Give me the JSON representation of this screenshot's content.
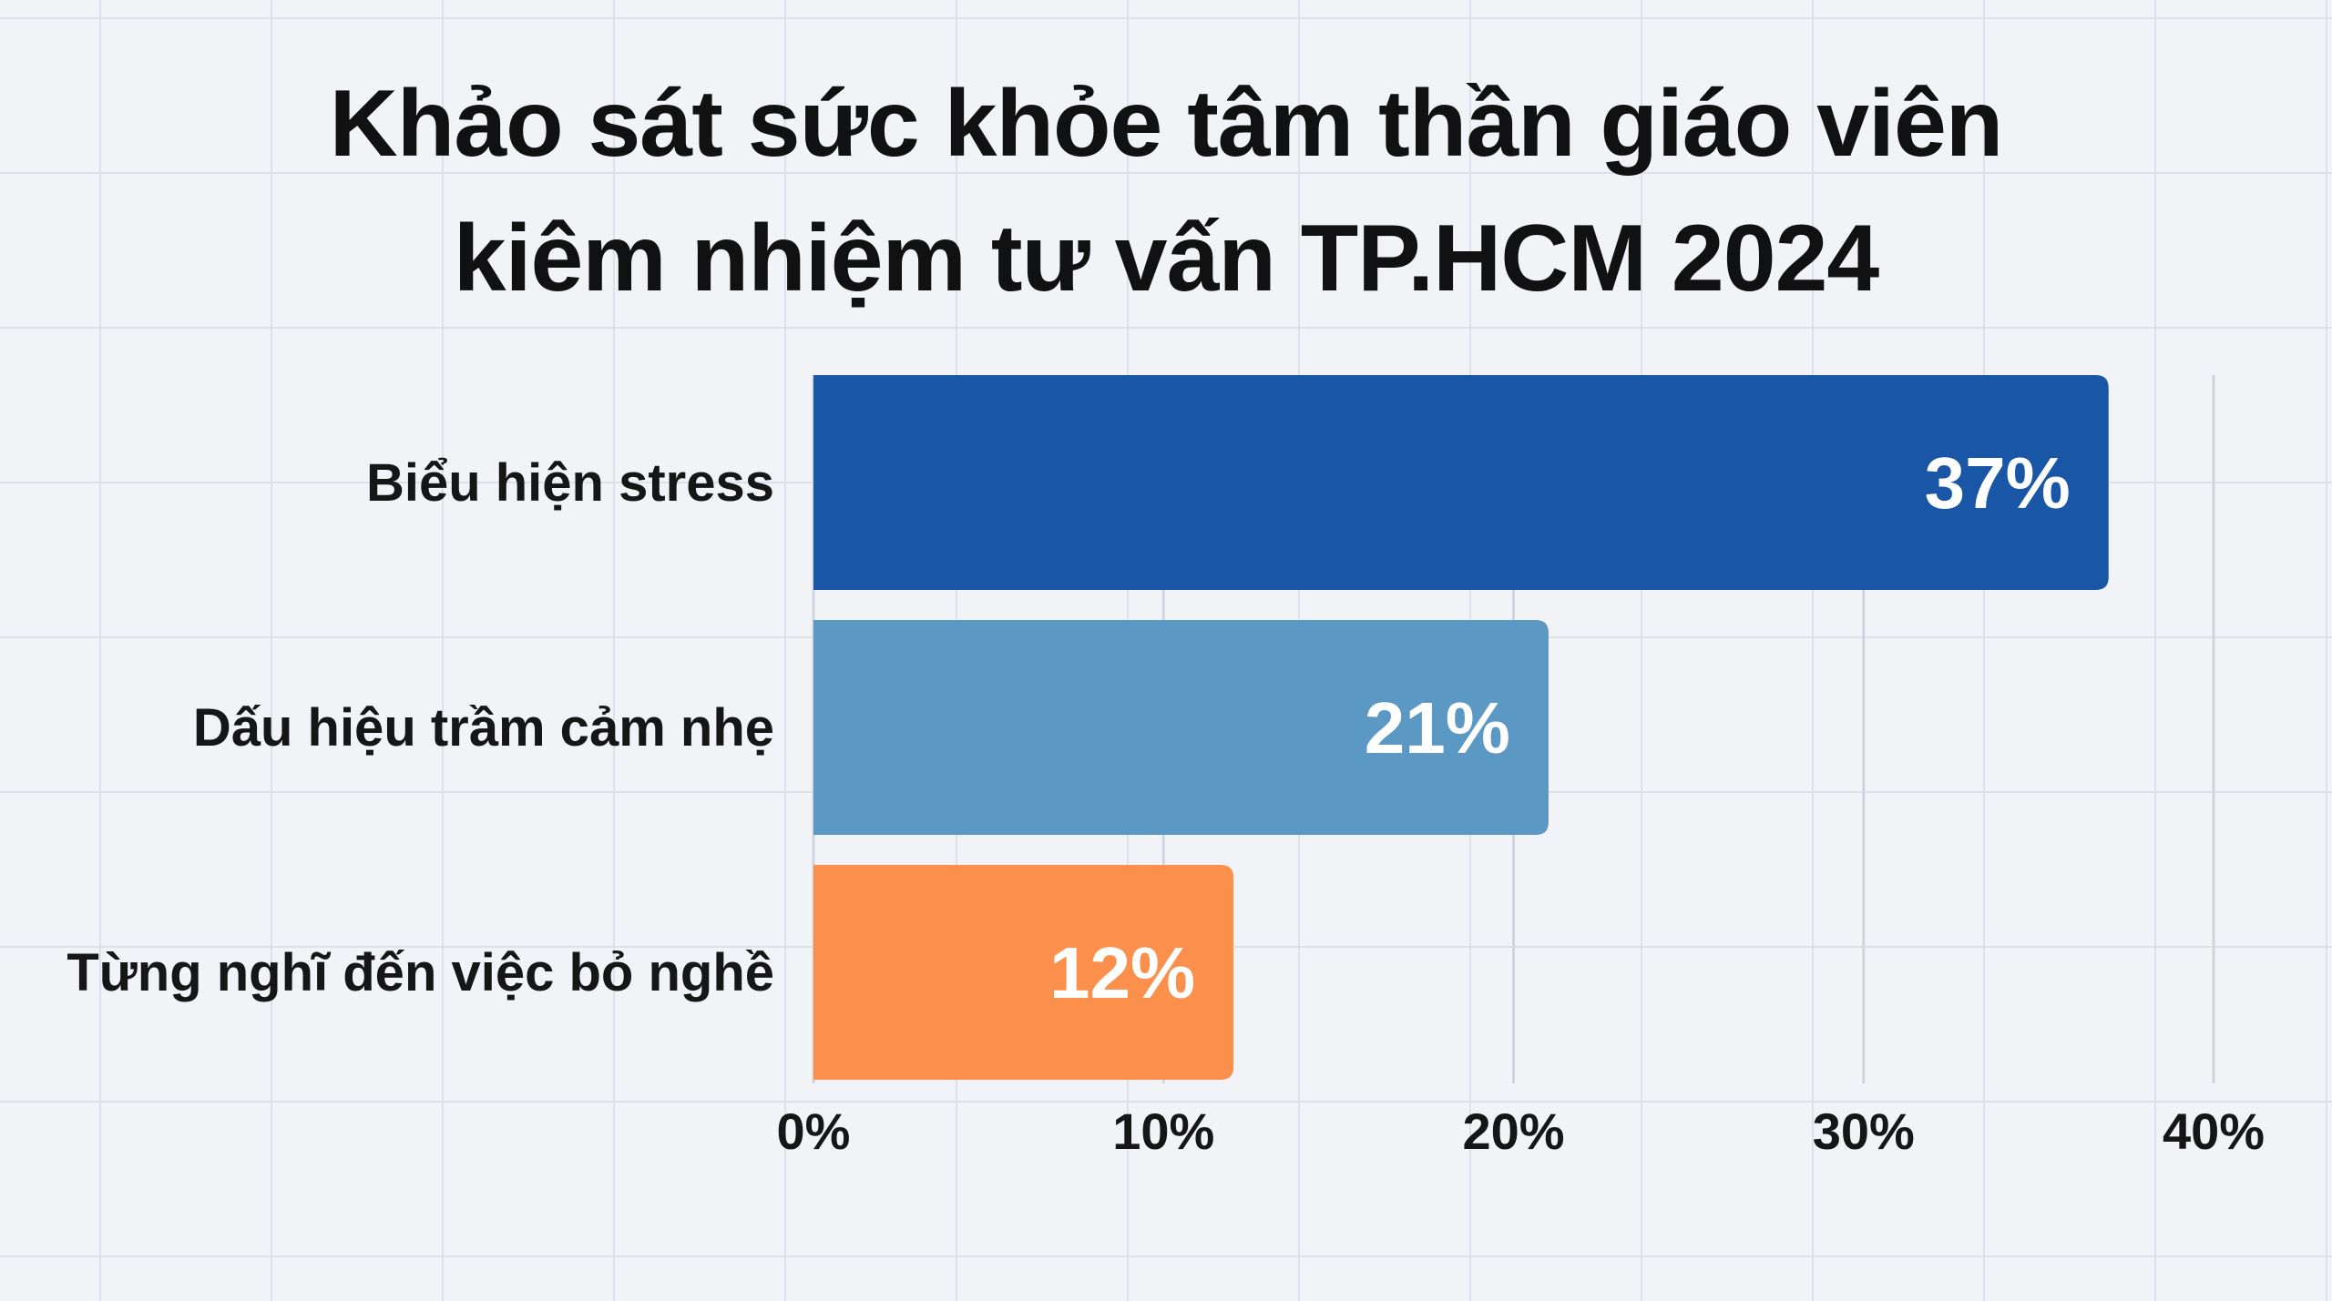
{
  "chart_data": {
    "type": "bar",
    "orientation": "horizontal",
    "title_lines": [
      "Khảo sát sức khỏe tâm thần giáo viên",
      "kiêm nhiệm tư vấn TP.HCM 2024"
    ],
    "categories": [
      "Biểu hiện stress",
      "Dấu hiệu trầm cảm nhẹ",
      "Từng nghĩ đến việc bỏ nghề"
    ],
    "values": [
      37,
      21,
      12
    ],
    "data_labels": [
      "37%",
      "21%",
      "12%"
    ],
    "bar_colors": [
      "#1a56a6",
      "#5b98c4",
      "#fa904b"
    ],
    "xlim": [
      0,
      40
    ],
    "x_ticks": [
      0,
      10,
      20,
      30,
      40
    ],
    "x_tick_labels": [
      "0%",
      "10%",
      "20%",
      "30%",
      "40%"
    ],
    "grid": true,
    "legend": "none"
  }
}
